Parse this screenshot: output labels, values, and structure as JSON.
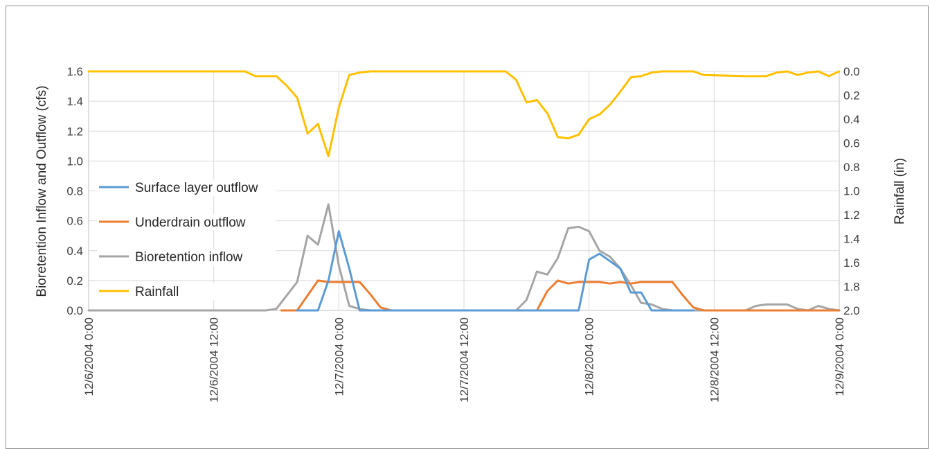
{
  "chart_data": {
    "type": "line",
    "title": "",
    "xlabel": "",
    "ylabel": "Bioretention Inflow and Outflow (cfs)",
    "y2label": "Rainfall (in)",
    "ylim": [
      0,
      1.6
    ],
    "y2lim": [
      0,
      2.0
    ],
    "y2_inverted": true,
    "y_ticks": [
      "0.0",
      "0.2",
      "0.4",
      "0.6",
      "0.8",
      "1.0",
      "1.2",
      "1.4",
      "1.6"
    ],
    "y2_ticks": [
      "0.0",
      "0.2",
      "0.4",
      "0.6",
      "0.8",
      "1.0",
      "1.2",
      "1.4",
      "1.6",
      "1.8",
      "2.0"
    ],
    "x_tick_labels": [
      "12/6/2004 0:00",
      "12/6/2004 12:00",
      "12/7/2004 0:00",
      "12/7/2004 12:00",
      "12/8/2004 0:00",
      "12/8/2004 12:00",
      "12/9/2004 0:00"
    ],
    "xlim_hours": [
      0,
      72
    ],
    "grid": true,
    "legend_position": "left",
    "series": [
      {
        "name": "Surface layer outflow",
        "axis": "left",
        "color": "#5b9bd5",
        "x_hours": [
          20,
          21,
          22,
          23,
          24,
          25,
          26,
          27,
          44,
          45,
          46,
          47,
          48,
          49,
          50,
          51,
          52,
          53,
          54,
          55,
          56,
          57,
          58
        ],
        "values": [
          0,
          0,
          0,
          0.2,
          0.53,
          0.28,
          0,
          0,
          0,
          0,
          0,
          0,
          0.34,
          0.38,
          0.33,
          0.28,
          0.12,
          0.12,
          0,
          0,
          0,
          0,
          0
        ]
      },
      {
        "name": "Underdrain outflow",
        "axis": "left",
        "color": "#ed7d31",
        "x_hours": [
          18.5,
          20,
          21,
          22,
          23,
          24,
          25,
          26,
          27,
          28,
          29,
          42,
          43,
          44,
          45,
          46,
          47,
          48,
          49,
          50,
          51,
          52,
          53,
          54,
          55,
          56,
          57,
          58,
          59,
          64,
          65,
          66,
          67,
          68,
          69,
          70,
          71,
          72
        ],
        "values": [
          0,
          0,
          0.1,
          0.2,
          0.19,
          0.19,
          0.19,
          0.19,
          0.11,
          0.02,
          0,
          0,
          0,
          0.13,
          0.2,
          0.18,
          0.19,
          0.19,
          0.19,
          0.18,
          0.19,
          0.18,
          0.19,
          0.19,
          0.19,
          0.19,
          0.1,
          0.02,
          0,
          0,
          0,
          0,
          0,
          0,
          0,
          0,
          0,
          0
        ]
      },
      {
        "name": "Bioretention inflow",
        "axis": "left",
        "color": "#a5a5a5",
        "x_hours": [
          0,
          17,
          18,
          19,
          20,
          21,
          22,
          23,
          24,
          25,
          26,
          27,
          28,
          41,
          42,
          43,
          44,
          45,
          46,
          47,
          48,
          49,
          50,
          51,
          52,
          53,
          54,
          55,
          56,
          57,
          58,
          63,
          64,
          65,
          66,
          67,
          68,
          69,
          70,
          71,
          72
        ],
        "values": [
          0,
          0,
          0.01,
          0.1,
          0.19,
          0.5,
          0.44,
          0.71,
          0.3,
          0.03,
          0.01,
          0,
          0,
          0,
          0.07,
          0.26,
          0.24,
          0.35,
          0.55,
          0.56,
          0.53,
          0.4,
          0.36,
          0.28,
          0.17,
          0.05,
          0.04,
          0.01,
          0,
          0,
          0,
          0,
          0.03,
          0.04,
          0.04,
          0.04,
          0.01,
          0,
          0.03,
          0.01,
          0
        ]
      },
      {
        "name": "Rainfall",
        "axis": "right",
        "color": "#ffc000",
        "x_hours": [
          0,
          15,
          16,
          17,
          18,
          19,
          20,
          21,
          22,
          23,
          24,
          25,
          26,
          27,
          28,
          40,
          41,
          42,
          43,
          44,
          45,
          46,
          47,
          48,
          49,
          50,
          51,
          52,
          53,
          54,
          55,
          56,
          57,
          58,
          59,
          63,
          64,
          65,
          66,
          67,
          68,
          69,
          70,
          71,
          72
        ],
        "values": [
          0,
          0,
          0.04,
          0.04,
          0.04,
          0.12,
          0.22,
          0.52,
          0.44,
          0.71,
          0.3,
          0.03,
          0.01,
          0,
          0,
          0,
          0.07,
          0.26,
          0.24,
          0.35,
          0.55,
          0.56,
          0.53,
          0.4,
          0.36,
          0.28,
          0.17,
          0.05,
          0.04,
          0.01,
          0,
          0,
          0,
          0,
          0.03,
          0.04,
          0.04,
          0.04,
          0.01,
          0,
          0.03,
          0.01,
          0,
          0.04,
          0
        ]
      }
    ]
  }
}
